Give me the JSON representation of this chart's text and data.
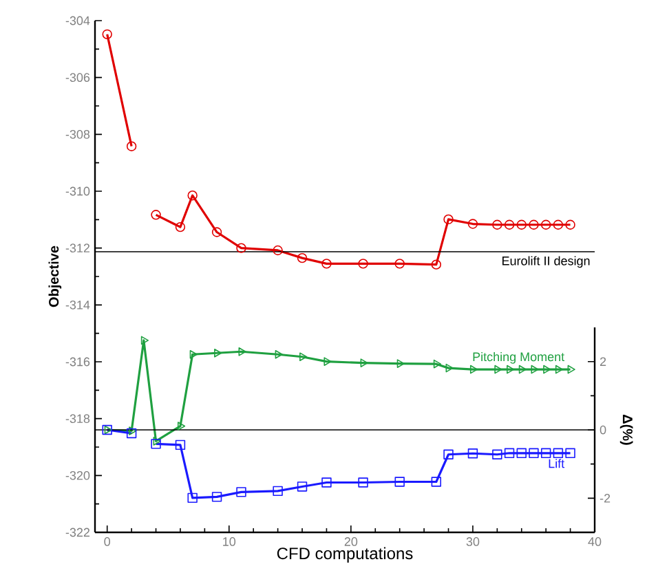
{
  "chart_data": {
    "type": "line",
    "xlabel": "CFD computations",
    "ylabel": "Objective",
    "y2label": "Δ(%)",
    "x": [
      0,
      2,
      3,
      4,
      6,
      7,
      9,
      11,
      14,
      16,
      18,
      21,
      24,
      27,
      28,
      30,
      32,
      33,
      34,
      35,
      36,
      37,
      38
    ],
    "series": [
      {
        "color": "#e00000",
        "marker": "circle",
        "values": [
          -304.48,
          -308.42,
          null,
          -310.83,
          -311.26,
          -310.15,
          -311.44,
          -312.0,
          -312.08,
          -312.35,
          -312.55,
          -312.55,
          -312.55,
          -312.58,
          -310.99,
          -311.15,
          -311.18,
          -311.18,
          -311.18,
          -311.18,
          -311.18,
          -311.18,
          -311.18
        ]
      },
      {
        "name": "Pitching Moment",
        "axis": "y2",
        "color": "#1fa040",
        "marker": "triangle",
        "values": [
          0.0,
          -0.03,
          2.62,
          -0.33,
          0.11,
          2.21,
          2.25,
          2.29,
          2.21,
          2.14,
          2.0,
          1.96,
          1.94,
          1.93,
          1.81,
          1.77,
          1.77,
          1.77,
          1.77,
          1.77,
          1.77,
          1.77,
          1.77
        ]
      },
      {
        "name": "Lift",
        "axis": "y2",
        "color": "#1a1aff",
        "marker": "square",
        "values": [
          0.0,
          -0.1,
          null,
          -0.41,
          -0.44,
          -1.99,
          -1.96,
          -1.82,
          -1.79,
          -1.66,
          -1.54,
          -1.54,
          -1.52,
          -1.52,
          -0.72,
          -0.69,
          -0.72,
          -0.68,
          -0.68,
          -0.68,
          -0.68,
          -0.68,
          -0.68
        ]
      }
    ],
    "xlim": [
      -1,
      40
    ],
    "xticks": [
      0,
      10,
      20,
      30,
      40
    ],
    "ylim": [
      -322,
      -304
    ],
    "yticks": [
      -322,
      -320,
      -318,
      -316,
      -314,
      -312,
      -310,
      -308,
      -306,
      -304
    ],
    "y2lim": [
      -3,
      3
    ],
    "y2ticks": [
      -2,
      0,
      2
    ],
    "ref_lines": [
      {
        "axis": "y",
        "value": -312.13,
        "label": "Eurolift II design",
        "color": "#000000"
      },
      {
        "axis": "y2",
        "value": 0,
        "color": "#000000"
      }
    ],
    "grid": false
  }
}
